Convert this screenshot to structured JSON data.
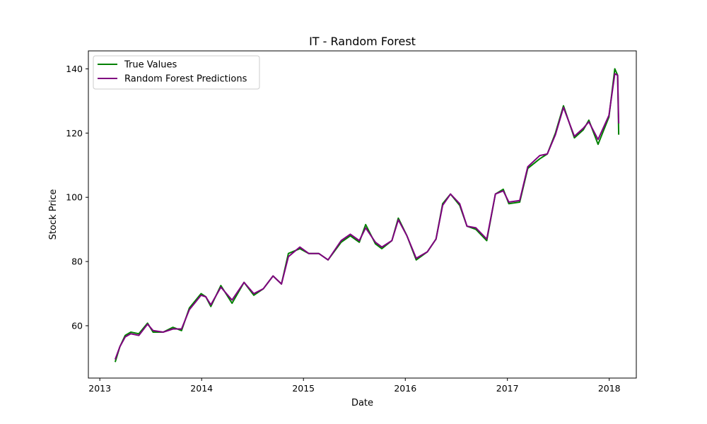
{
  "chart_data": {
    "type": "line",
    "title": "IT - Random Forest",
    "xlabel": "Date",
    "ylabel": "Stock Price",
    "x_ticks": [
      "2013",
      "2014",
      "2015",
      "2016",
      "2017",
      "2018"
    ],
    "y_ticks": [
      60,
      80,
      100,
      120,
      140
    ],
    "xlim": [
      "2012-11-21",
      "2018-04-08"
    ],
    "ylim": [
      43.7,
      145.6
    ],
    "grid": false,
    "legend": "top-left",
    "dates": [
      "2013-02-25",
      "2013-03-14",
      "2013-04-02",
      "2013-04-22",
      "2013-05-21",
      "2013-06-21",
      "2013-07-11",
      "2013-08-16",
      "2013-09-20",
      "2013-10-21",
      "2013-11-18",
      "2013-12-30",
      "2014-01-16",
      "2014-02-03",
      "2014-03-11",
      "2014-04-20",
      "2014-06-02",
      "2014-07-07",
      "2014-08-10",
      "2014-09-14",
      "2014-10-14",
      "2014-11-08",
      "2014-12-19",
      "2015-01-20",
      "2015-02-25",
      "2015-03-30",
      "2015-05-16",
      "2015-06-18",
      "2015-07-20",
      "2015-08-12",
      "2015-09-16",
      "2015-10-09",
      "2015-11-14",
      "2015-12-07",
      "2016-01-07",
      "2016-02-09",
      "2016-03-20",
      "2016-04-20",
      "2016-05-14",
      "2016-06-11",
      "2016-07-14",
      "2016-08-09",
      "2016-09-10",
      "2016-10-19",
      "2016-11-19",
      "2016-12-17",
      "2017-01-06",
      "2017-02-14",
      "2017-03-15",
      "2017-04-27",
      "2017-05-24",
      "2017-06-22",
      "2017-07-21",
      "2017-08-29",
      "2017-09-30",
      "2017-10-20",
      "2017-11-22",
      "2017-12-31",
      "2018-01-21",
      "2018-01-31",
      "2018-02-04"
    ],
    "series": [
      {
        "name": "True Values",
        "color": "#008000",
        "values": [
          48.7,
          53.5,
          57.0,
          58.0,
          57.5,
          60.8,
          58.0,
          58.0,
          59.5,
          58.5,
          65.5,
          70.0,
          69.0,
          66.0,
          72.5,
          67.0,
          73.5,
          69.5,
          71.5,
          75.5,
          73.0,
          82.5,
          84.0,
          82.5,
          82.5,
          80.5,
          86.0,
          88.0,
          86.0,
          91.5,
          85.5,
          84.0,
          86.5,
          93.5,
          88.0,
          80.5,
          83.0,
          87.0,
          98.0,
          101.0,
          97.5,
          91.0,
          90.0,
          86.5,
          101.0,
          102.5,
          98.0,
          98.5,
          109.0,
          112.0,
          113.5,
          120.0,
          128.5,
          118.5,
          121.0,
          124.0,
          116.5,
          125.0,
          140.0,
          138.0,
          119.5
        ]
      },
      {
        "name": "Random Forest Predictions",
        "color": "#800080",
        "values": [
          49.5,
          53.5,
          56.5,
          57.5,
          57.0,
          60.5,
          58.5,
          58.0,
          59.0,
          59.0,
          65.0,
          69.5,
          69.0,
          66.5,
          72.0,
          68.0,
          73.5,
          70.0,
          71.5,
          75.5,
          73.0,
          81.5,
          84.5,
          82.5,
          82.5,
          80.5,
          86.5,
          88.5,
          86.5,
          90.5,
          86.0,
          84.5,
          86.5,
          93.0,
          88.0,
          81.0,
          83.0,
          87.0,
          97.5,
          101.0,
          98.0,
          91.0,
          90.5,
          87.0,
          101.0,
          102.0,
          98.5,
          99.0,
          109.5,
          113.0,
          113.5,
          119.5,
          128.0,
          119.0,
          121.5,
          123.5,
          118.0,
          125.5,
          138.5,
          138.0,
          123.0
        ]
      }
    ]
  }
}
